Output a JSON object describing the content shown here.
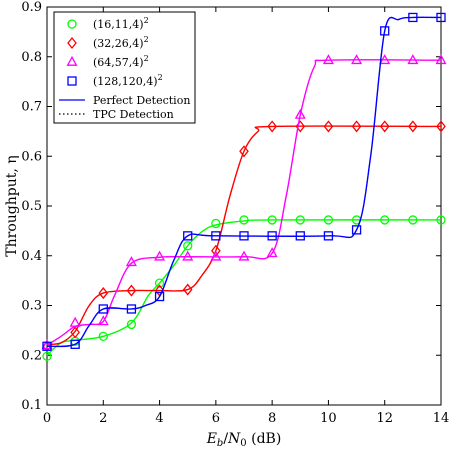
{
  "chart_data": {
    "type": "line",
    "title": "",
    "xlabel": "E_b/N_0 (dB)",
    "xlabel_parts": {
      "sym": "E",
      "sub1": "b",
      "slash": "/",
      "sym2": "N",
      "sub2": "0",
      "unit": " (dB)"
    },
    "ylabel": "Throughput, η",
    "xlim": [
      0,
      14
    ],
    "ylim": [
      0.1,
      0.9
    ],
    "x_ticks": [
      0,
      2,
      4,
      6,
      8,
      10,
      12,
      14
    ],
    "y_ticks": [
      0.1,
      0.2,
      0.3,
      0.4,
      0.5,
      0.6,
      0.7,
      0.8,
      0.9
    ],
    "grid": false,
    "legend_position": "top-left",
    "x": [
      0,
      1,
      2,
      3,
      4,
      5,
      6,
      7,
      8,
      9,
      10,
      11,
      12,
      13,
      14
    ],
    "series": [
      {
        "name": "(16,11,4)",
        "superscript": "2",
        "color": "#00ff00",
        "marker": "circle",
        "values": [
          0.198,
          0.228,
          0.238,
          0.262,
          0.345,
          0.42,
          0.465,
          0.472,
          0.472,
          0.472,
          0.472,
          0.472,
          0.472,
          0.472,
          0.472
        ],
        "curve": [
          [
            0,
            0.2
          ],
          [
            0.5,
            0.225
          ],
          [
            1,
            0.23
          ],
          [
            2,
            0.238
          ],
          [
            3,
            0.265
          ],
          [
            3.6,
            0.32
          ],
          [
            4,
            0.345
          ],
          [
            4.5,
            0.38
          ],
          [
            5,
            0.42
          ],
          [
            5.5,
            0.448
          ],
          [
            6,
            0.462
          ],
          [
            7,
            0.47
          ],
          [
            8,
            0.472
          ],
          [
            14,
            0.472
          ]
        ]
      },
      {
        "name": "(32,26,4)",
        "superscript": "2",
        "color": "#ff0000",
        "marker": "diamond",
        "values": [
          0.218,
          0.246,
          0.325,
          0.33,
          0.33,
          0.332,
          0.41,
          0.61,
          0.66,
          0.66,
          0.66,
          0.66,
          0.66,
          0.66,
          0.66
        ],
        "curve": [
          [
            0,
            0.222
          ],
          [
            0.5,
            0.225
          ],
          [
            1,
            0.248
          ],
          [
            1.5,
            0.3
          ],
          [
            2,
            0.325
          ],
          [
            3,
            0.33
          ],
          [
            4,
            0.33
          ],
          [
            5,
            0.332
          ],
          [
            5.5,
            0.36
          ],
          [
            6,
            0.41
          ],
          [
            6.5,
            0.52
          ],
          [
            7,
            0.61
          ],
          [
            7.5,
            0.65
          ],
          [
            8,
            0.66
          ],
          [
            14,
            0.66
          ]
        ]
      },
      {
        "name": "(64,57,4)",
        "superscript": "2",
        "color": "#ff00ff",
        "marker": "triangle",
        "values": [
          0.22,
          0.265,
          0.268,
          0.387,
          0.398,
          0.398,
          0.398,
          0.398,
          0.405,
          0.683,
          0.793,
          0.793,
          0.793,
          0.793,
          0.793
        ],
        "curve": [
          [
            0,
            0.22
          ],
          [
            0.5,
            0.238
          ],
          [
            1,
            0.258
          ],
          [
            1.5,
            0.262
          ],
          [
            2,
            0.268
          ],
          [
            2.4,
            0.32
          ],
          [
            3,
            0.385
          ],
          [
            4,
            0.397
          ],
          [
            5,
            0.398
          ],
          [
            7,
            0.398
          ],
          [
            8,
            0.405
          ],
          [
            8.5,
            0.52
          ],
          [
            9,
            0.683
          ],
          [
            9.5,
            0.78
          ],
          [
            10,
            0.793
          ],
          [
            14,
            0.793
          ]
        ]
      },
      {
        "name": "(128,120,4)",
        "superscript": "2",
        "color": "#0000ff",
        "marker": "square",
        "values": [
          0.218,
          0.222,
          0.293,
          0.293,
          0.318,
          0.44,
          0.44,
          0.44,
          0.44,
          0.44,
          0.44,
          0.452,
          0.852,
          0.879,
          0.879
        ],
        "curve": [
          [
            0,
            0.218
          ],
          [
            1,
            0.222
          ],
          [
            1.5,
            0.26
          ],
          [
            2,
            0.293
          ],
          [
            3,
            0.293
          ],
          [
            3.5,
            0.3
          ],
          [
            4,
            0.318
          ],
          [
            4.5,
            0.39
          ],
          [
            5,
            0.44
          ],
          [
            6,
            0.44
          ],
          [
            10,
            0.44
          ],
          [
            11,
            0.452
          ],
          [
            11.5,
            0.6
          ],
          [
            12,
            0.852
          ],
          [
            12.5,
            0.875
          ],
          [
            13,
            0.879
          ],
          [
            14,
            0.879
          ]
        ]
      }
    ],
    "legend_lines": [
      {
        "label": "Perfect Detection",
        "color": "#0000ff",
        "style": "solid"
      },
      {
        "label": "TPC Detection",
        "color": "#000000",
        "style": "dotted"
      }
    ]
  }
}
